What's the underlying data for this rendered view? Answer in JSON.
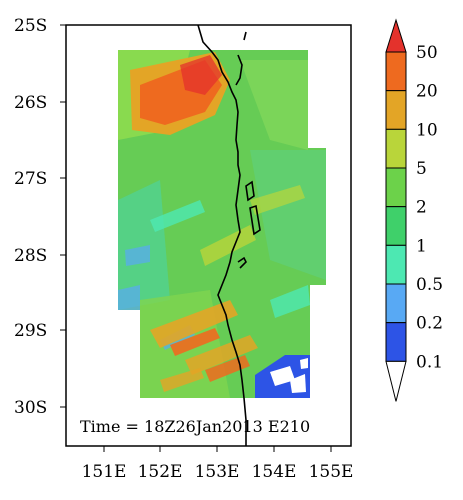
{
  "map": {
    "lat_labels": [
      "25S",
      "26S",
      "27S",
      "28S",
      "29S",
      "30S"
    ],
    "lon_labels": [
      "151E",
      "152E",
      "153E",
      "154E",
      "155E"
    ],
    "time_label": "Time = 18Z26Jan2013 E210"
  },
  "colorbar": {
    "levels": [
      "50",
      "20",
      "10",
      "5",
      "2",
      "1",
      "0.5",
      "0.2",
      "0.1"
    ],
    "colors": [
      "#e4322c",
      "#ee6a1f",
      "#e3a526",
      "#b9d53a",
      "#6cd24a",
      "#3fd06a",
      "#4de8b2",
      "#58a9f4",
      "#2d54e6",
      "#ffffff"
    ]
  },
  "colors": {
    "green": "#66cc55",
    "light_green": "#9fdc55",
    "orange": "#ef7a28",
    "blue": "#3c73e0",
    "coast": "#000000"
  }
}
